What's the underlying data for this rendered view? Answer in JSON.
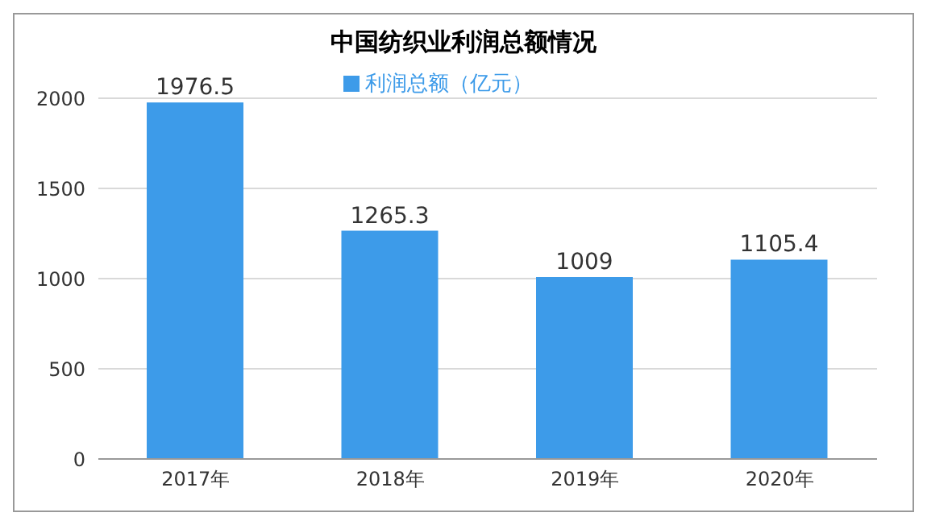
{
  "chart_data": {
    "type": "bar",
    "title": "中国纺织业利润总额情况",
    "categories": [
      "2017年",
      "2018年",
      "2019年",
      "2020年"
    ],
    "series": [
      {
        "name": "利润总额（亿元）",
        "color": "#3d9be9",
        "values": [
          1976.5,
          1265.3,
          1009,
          1105.4
        ]
      }
    ],
    "ylim": [
      0,
      2000
    ],
    "yticks": [
      0,
      500,
      1000,
      1500,
      2000
    ],
    "grid": "y",
    "legend": "top",
    "data_labels": true
  }
}
